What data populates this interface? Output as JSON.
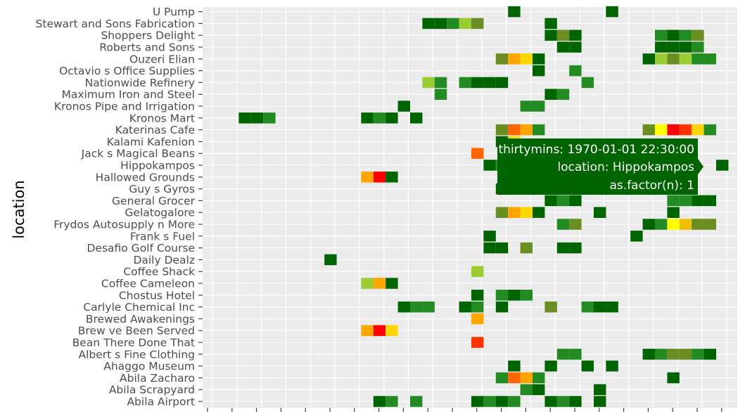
{
  "chart_data": {
    "type": "heatmap",
    "title": "",
    "xlabel": "",
    "ylabel": "location",
    "grid": true,
    "legend": "none",
    "colors": {
      "panel": "#ebebeb",
      "grid": "#ffffff",
      "scale": [
        "#006400",
        "#228b22",
        "#6b8e23",
        "#9acd32",
        "#ffd700",
        "#ffa500",
        "#ff6600",
        "#ff3300",
        "#ff0000",
        "#ffff00",
        "#f0c000"
      ],
      "tooltip": "#006400"
    },
    "locations": [
      "Abila Airport",
      "Abila Scrapyard",
      "Abila Zacharo",
      "Ahaggo Museum",
      "Albert s Fine Clothing",
      "Bean There Done That",
      "Brew ve Been Served",
      "Brewed Awakenings",
      "Carlyle Chemical Inc ",
      "Chostus Hotel",
      "Coffee Cameleon",
      "Coffee Shack",
      "Daily Dealz",
      "Desafio Golf Course",
      "Frank s Fuel",
      "Frydos Autosupply n  More",
      "Gelatogalore",
      "General Grocer",
      "Guy s Gyros",
      "Hallowed Grounds",
      "Hippokampos",
      "Jack s Magical Beans",
      "Kalami Kafenion",
      "Katerinas Cafe",
      "Kronos Mart",
      "Kronos Pipe and Irrigation",
      "Maximum Iron and Steel",
      "Nationwide Refinery",
      "Octavio s Office Supplies",
      "Ouzeri Elian",
      "Roberts and Sons",
      "Shoppers  Delight",
      "Stewart and Sons Fabrication",
      "U Pump"
    ],
    "x_slot_count": 40,
    "cells": [
      {
        "loc": "U Pump",
        "x": 23,
        "c": 0
      },
      {
        "loc": "U Pump",
        "x": 31,
        "c": 0
      },
      {
        "loc": "Stewart and Sons Fabrication",
        "x": 16,
        "c": 0
      },
      {
        "loc": "Stewart and Sons Fabrication",
        "x": 17,
        "c": 0
      },
      {
        "loc": "Stewart and Sons Fabrication",
        "x": 18,
        "c": 1
      },
      {
        "loc": "Stewart and Sons Fabrication",
        "x": 19,
        "c": 3
      },
      {
        "loc": "Stewart and Sons Fabrication",
        "x": 20,
        "c": 2
      },
      {
        "loc": "Stewart and Sons Fabrication",
        "x": 26,
        "c": 0
      },
      {
        "loc": "Shoppers  Delight",
        "x": 26,
        "c": 0
      },
      {
        "loc": "Shoppers  Delight",
        "x": 27,
        "c": 2
      },
      {
        "loc": "Shoppers  Delight",
        "x": 28,
        "c": 0
      },
      {
        "loc": "Shoppers  Delight",
        "x": 35,
        "c": 1
      },
      {
        "loc": "Shoppers  Delight",
        "x": 36,
        "c": 0
      },
      {
        "loc": "Shoppers  Delight",
        "x": 37,
        "c": 1
      },
      {
        "loc": "Shoppers  Delight",
        "x": 38,
        "c": 2
      },
      {
        "loc": "Roberts and Sons",
        "x": 27,
        "c": 0
      },
      {
        "loc": "Roberts and Sons",
        "x": 28,
        "c": 0
      },
      {
        "loc": "Roberts and Sons",
        "x": 35,
        "c": 0
      },
      {
        "loc": "Roberts and Sons",
        "x": 36,
        "c": 0
      },
      {
        "loc": "Roberts and Sons",
        "x": 37,
        "c": 0
      },
      {
        "loc": "Roberts and Sons",
        "x": 38,
        "c": 1
      },
      {
        "loc": "Ouzeri Elian",
        "x": 22,
        "c": 2
      },
      {
        "loc": "Ouzeri Elian",
        "x": 23,
        "c": 5
      },
      {
        "loc": "Ouzeri Elian",
        "x": 24,
        "c": 4
      },
      {
        "loc": "Ouzeri Elian",
        "x": 25,
        "c": 0
      },
      {
        "loc": "Ouzeri Elian",
        "x": 34,
        "c": 0
      },
      {
        "loc": "Ouzeri Elian",
        "x": 35,
        "c": 3
      },
      {
        "loc": "Ouzeri Elian",
        "x": 36,
        "c": 2
      },
      {
        "loc": "Ouzeri Elian",
        "x": 37,
        "c": 3
      },
      {
        "loc": "Ouzeri Elian",
        "x": 38,
        "c": 1
      },
      {
        "loc": "Ouzeri Elian",
        "x": 39,
        "c": 1
      },
      {
        "loc": "Octavio s Office Supplies",
        "x": 25,
        "c": 0
      },
      {
        "loc": "Octavio s Office Supplies",
        "x": 28,
        "c": 1
      },
      {
        "loc": "Nationwide Refinery",
        "x": 16,
        "c": 3
      },
      {
        "loc": "Nationwide Refinery",
        "x": 17,
        "c": 1
      },
      {
        "loc": "Nationwide Refinery",
        "x": 19,
        "c": 1
      },
      {
        "loc": "Nationwide Refinery",
        "x": 20,
        "c": 0
      },
      {
        "loc": "Nationwide Refinery",
        "x": 21,
        "c": 0
      },
      {
        "loc": "Nationwide Refinery",
        "x": 22,
        "c": 0
      },
      {
        "loc": "Nationwide Refinery",
        "x": 29,
        "c": 1
      },
      {
        "loc": "Maximum Iron and Steel",
        "x": 17,
        "c": 1
      },
      {
        "loc": "Maximum Iron and Steel",
        "x": 26,
        "c": 0
      },
      {
        "loc": "Maximum Iron and Steel",
        "x": 27,
        "c": 1
      },
      {
        "loc": "Kronos Pipe and Irrigation",
        "x": 14,
        "c": 0
      },
      {
        "loc": "Kronos Pipe and Irrigation",
        "x": 24,
        "c": 1
      },
      {
        "loc": "Kronos Pipe and Irrigation",
        "x": 25,
        "c": 1
      },
      {
        "loc": "Kronos Mart",
        "x": 1,
        "c": 0
      },
      {
        "loc": "Kronos Mart",
        "x": 2,
        "c": 0
      },
      {
        "loc": "Kronos Mart",
        "x": 3,
        "c": 1
      },
      {
        "loc": "Kronos Mart",
        "x": 11,
        "c": 0
      },
      {
        "loc": "Kronos Mart",
        "x": 12,
        "c": 1
      },
      {
        "loc": "Kronos Mart",
        "x": 13,
        "c": 0
      },
      {
        "loc": "Kronos Mart",
        "x": 15,
        "c": 0
      },
      {
        "loc": "Katerinas Cafe",
        "x": 22,
        "c": 2
      },
      {
        "loc": "Katerinas Cafe",
        "x": 23,
        "c": 6
      },
      {
        "loc": "Katerinas Cafe",
        "x": 24,
        "c": 5
      },
      {
        "loc": "Katerinas Cafe",
        "x": 25,
        "c": 1
      },
      {
        "loc": "Katerinas Cafe",
        "x": 34,
        "c": 2
      },
      {
        "loc": "Katerinas Cafe",
        "x": 35,
        "c": 9
      },
      {
        "loc": "Katerinas Cafe",
        "x": 36,
        "c": 8
      },
      {
        "loc": "Katerinas Cafe",
        "x": 37,
        "c": 7
      },
      {
        "loc": "Katerinas Cafe",
        "x": 38,
        "c": 4
      },
      {
        "loc": "Katerinas Cafe",
        "x": 39,
        "c": 1
      },
      {
        "loc": "Kalami Kafenion",
        "x": 22,
        "c": 0
      },
      {
        "loc": "Kalami Kafenion",
        "x": 23,
        "c": 4
      },
      {
        "loc": "Jack s Magical Beans",
        "x": 20,
        "c": 6
      },
      {
        "loc": "Hippokampos",
        "x": 21,
        "c": 0
      },
      {
        "loc": "Hippokampos",
        "x": 22,
        "c": 1
      },
      {
        "loc": "Hippokampos",
        "x": 23,
        "c": 7
      },
      {
        "loc": "Hippokampos",
        "x": 40,
        "c": 0
      },
      {
        "loc": "Hallowed Grounds",
        "x": 11,
        "c": 5
      },
      {
        "loc": "Hallowed Grounds",
        "x": 12,
        "c": 8
      },
      {
        "loc": "Hallowed Grounds",
        "x": 13,
        "c": 0
      },
      {
        "loc": "Guy s Gyros",
        "x": 22,
        "c": 0
      },
      {
        "loc": "Guy s Gyros",
        "x": 23,
        "c": 5
      },
      {
        "loc": "General Grocer",
        "x": 26,
        "c": 0
      },
      {
        "loc": "General Grocer",
        "x": 27,
        "c": 1
      },
      {
        "loc": "General Grocer",
        "x": 28,
        "c": 0
      },
      {
        "loc": "General Grocer",
        "x": 36,
        "c": 1
      },
      {
        "loc": "General Grocer",
        "x": 37,
        "c": 1
      },
      {
        "loc": "General Grocer",
        "x": 38,
        "c": 0
      },
      {
        "loc": "General Grocer",
        "x": 39,
        "c": 0
      },
      {
        "loc": "Gelatogalore",
        "x": 22,
        "c": 2
      },
      {
        "loc": "Gelatogalore",
        "x": 23,
        "c": 5
      },
      {
        "loc": "Gelatogalore",
        "x": 24,
        "c": 4
      },
      {
        "loc": "Gelatogalore",
        "x": 25,
        "c": 0
      },
      {
        "loc": "Gelatogalore",
        "x": 30,
        "c": 0
      },
      {
        "loc": "Gelatogalore",
        "x": 36,
        "c": 0
      },
      {
        "loc": "Frydos Autosupply n  More",
        "x": 27,
        "c": 1
      },
      {
        "loc": "Frydos Autosupply n  More",
        "x": 28,
        "c": 2
      },
      {
        "loc": "Frydos Autosupply n  More",
        "x": 34,
        "c": 0
      },
      {
        "loc": "Frydos Autosupply n  More",
        "x": 35,
        "c": 1
      },
      {
        "loc": "Frydos Autosupply n  More",
        "x": 36,
        "c": 9
      },
      {
        "loc": "Frydos Autosupply n  More",
        "x": 37,
        "c": 10
      },
      {
        "loc": "Frydos Autosupply n  More",
        "x": 38,
        "c": 2
      },
      {
        "loc": "Frydos Autosupply n  More",
        "x": 39,
        "c": 2
      },
      {
        "loc": "Frank s Fuel",
        "x": 21,
        "c": 0
      },
      {
        "loc": "Frank s Fuel",
        "x": 33,
        "c": 0
      },
      {
        "loc": "Desafio Golf Course",
        "x": 21,
        "c": 0
      },
      {
        "loc": "Desafio Golf Course",
        "x": 22,
        "c": 0
      },
      {
        "loc": "Desafio Golf Course",
        "x": 24,
        "c": 2
      },
      {
        "loc": "Desafio Golf Course",
        "x": 27,
        "c": 0
      },
      {
        "loc": "Desafio Golf Course",
        "x": 28,
        "c": 0
      },
      {
        "loc": "Daily Dealz",
        "x": 8,
        "c": 0
      },
      {
        "loc": "Coffee Shack",
        "x": 20,
        "c": 3
      },
      {
        "loc": "Coffee Cameleon",
        "x": 11,
        "c": 3
      },
      {
        "loc": "Coffee Cameleon",
        "x": 12,
        "c": 5
      },
      {
        "loc": "Coffee Cameleon",
        "x": 13,
        "c": 0
      },
      {
        "loc": "Chostus Hotel",
        "x": 20,
        "c": 0
      },
      {
        "loc": "Chostus Hotel",
        "x": 22,
        "c": 1
      },
      {
        "loc": "Chostus Hotel",
        "x": 23,
        "c": 0
      },
      {
        "loc": "Chostus Hotel",
        "x": 24,
        "c": 1
      },
      {
        "loc": "Carlyle Chemical Inc ",
        "x": 14,
        "c": 0
      },
      {
        "loc": "Carlyle Chemical Inc ",
        "x": 15,
        "c": 1
      },
      {
        "loc": "Carlyle Chemical Inc ",
        "x": 16,
        "c": 1
      },
      {
        "loc": "Carlyle Chemical Inc ",
        "x": 19,
        "c": 0
      },
      {
        "loc": "Carlyle Chemical Inc ",
        "x": 20,
        "c": 1
      },
      {
        "loc": "Carlyle Chemical Inc ",
        "x": 22,
        "c": 0
      },
      {
        "loc": "Carlyle Chemical Inc ",
        "x": 26,
        "c": 2
      },
      {
        "loc": "Carlyle Chemical Inc ",
        "x": 29,
        "c": 1
      },
      {
        "loc": "Carlyle Chemical Inc ",
        "x": 30,
        "c": 0
      },
      {
        "loc": "Carlyle Chemical Inc ",
        "x": 31,
        "c": 0
      },
      {
        "loc": "Brewed Awakenings",
        "x": 20,
        "c": 5
      },
      {
        "loc": "Brew ve Been Served",
        "x": 11,
        "c": 5
      },
      {
        "loc": "Brew ve Been Served",
        "x": 12,
        "c": 8
      },
      {
        "loc": "Brew ve Been Served",
        "x": 13,
        "c": 4
      },
      {
        "loc": "Bean There Done That",
        "x": 20,
        "c": 7
      },
      {
        "loc": "Albert s Fine Clothing",
        "x": 27,
        "c": 1
      },
      {
        "loc": "Albert s Fine Clothing",
        "x": 28,
        "c": 1
      },
      {
        "loc": "Albert s Fine Clothing",
        "x": 34,
        "c": 0
      },
      {
        "loc": "Albert s Fine Clothing",
        "x": 35,
        "c": 1
      },
      {
        "loc": "Albert s Fine Clothing",
        "x": 36,
        "c": 2
      },
      {
        "loc": "Albert s Fine Clothing",
        "x": 37,
        "c": 2
      },
      {
        "loc": "Albert s Fine Clothing",
        "x": 38,
        "c": 1
      },
      {
        "loc": "Albert s Fine Clothing",
        "x": 39,
        "c": 0
      },
      {
        "loc": "Ahaggo Museum",
        "x": 23,
        "c": 0
      },
      {
        "loc": "Ahaggo Museum",
        "x": 26,
        "c": 0
      },
      {
        "loc": "Ahaggo Museum",
        "x": 29,
        "c": 0
      },
      {
        "loc": "Ahaggo Museum",
        "x": 31,
        "c": 0
      },
      {
        "loc": "Abila Zacharo",
        "x": 22,
        "c": 1
      },
      {
        "loc": "Abila Zacharo",
        "x": 23,
        "c": 6
      },
      {
        "loc": "Abila Zacharo",
        "x": 24,
        "c": 5
      },
      {
        "loc": "Abila Zacharo",
        "x": 25,
        "c": 1
      },
      {
        "loc": "Abila Zacharo",
        "x": 36,
        "c": 0
      },
      {
        "loc": "Abila Scrapyard",
        "x": 24,
        "c": 1
      },
      {
        "loc": "Abila Scrapyard",
        "x": 25,
        "c": 0
      },
      {
        "loc": "Abila Scrapyard",
        "x": 30,
        "c": 0
      },
      {
        "loc": "Abila Airport",
        "x": 12,
        "c": 0
      },
      {
        "loc": "Abila Airport",
        "x": 13,
        "c": 1
      },
      {
        "loc": "Abila Airport",
        "x": 15,
        "c": 1
      },
      {
        "loc": "Abila Airport",
        "x": 20,
        "c": 0
      },
      {
        "loc": "Abila Airport",
        "x": 21,
        "c": 1
      },
      {
        "loc": "Abila Airport",
        "x": 22,
        "c": 0
      },
      {
        "loc": "Abila Airport",
        "x": 23,
        "c": 1
      },
      {
        "loc": "Abila Airport",
        "x": 26,
        "c": 0
      },
      {
        "loc": "Abila Airport",
        "x": 27,
        "c": 1
      },
      {
        "loc": "Abila Airport",
        "x": 28,
        "c": 0
      },
      {
        "loc": "Abila Airport",
        "x": 30,
        "c": 0
      }
    ],
    "tooltip": {
      "line1": "thirtymins: 1970-01-01 22:30:00",
      "line2": "location: Hippokampos",
      "line3": "as.factor(n): 1"
    }
  }
}
